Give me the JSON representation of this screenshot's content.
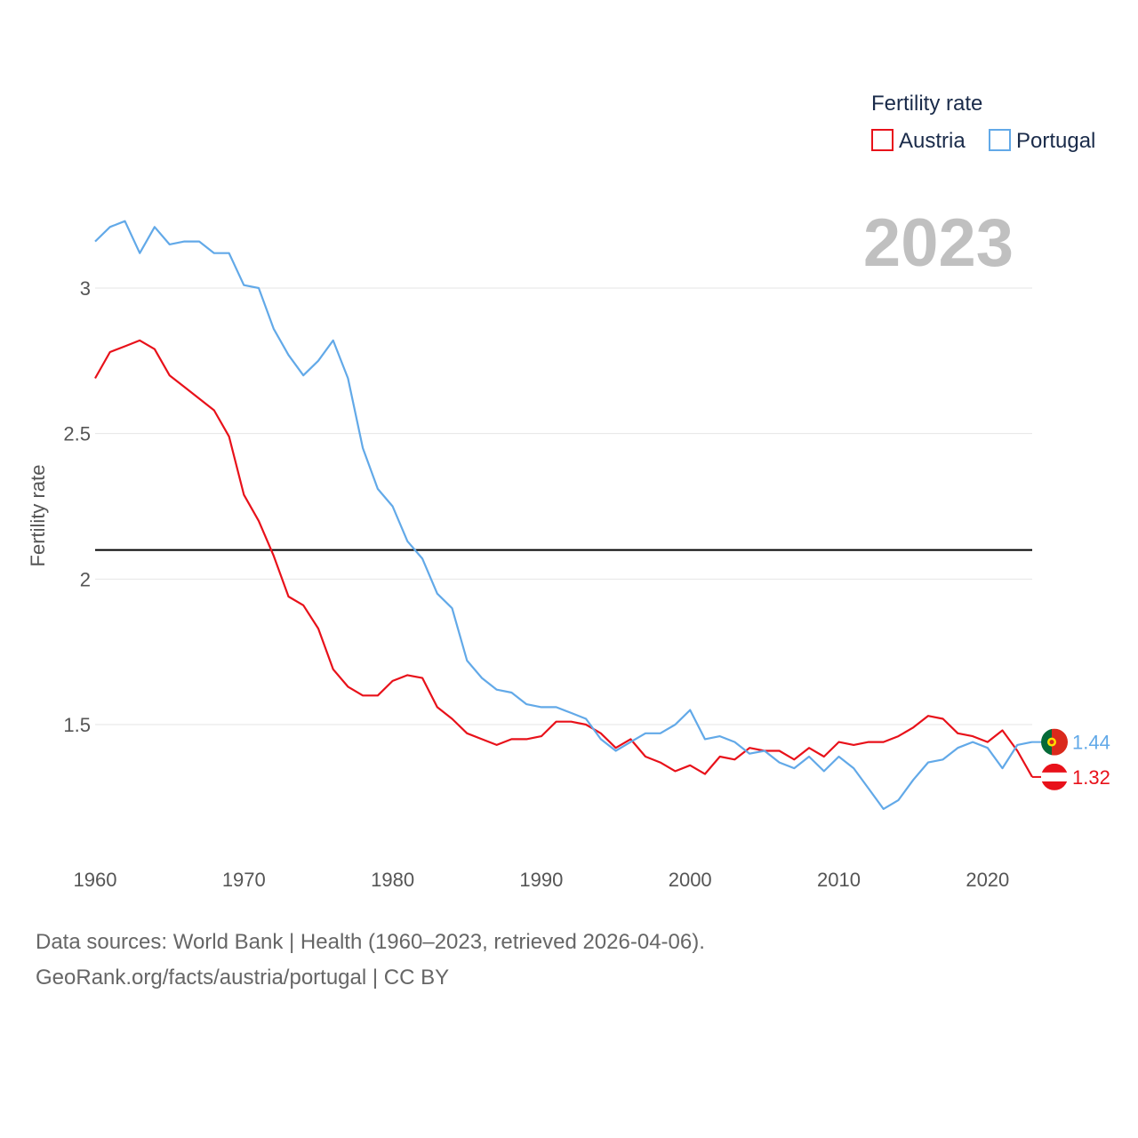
{
  "chart_data": {
    "type": "line",
    "title": "",
    "xlabel": "",
    "ylabel": "Fertility rate",
    "xlim": [
      1960,
      2023
    ],
    "ylim": [
      1.1,
      3.3
    ],
    "yticks": [
      1.5,
      2,
      2.5,
      3
    ],
    "ytick_labels": [
      "1.5",
      "2",
      "2.5",
      "3"
    ],
    "xticks": [
      1960,
      1970,
      1980,
      1990,
      2000,
      2010,
      2020
    ],
    "xtick_labels": [
      "1960",
      "1970",
      "1980",
      "1990",
      "2000",
      "2010",
      "2020"
    ],
    "reference_line": {
      "y": 2.1,
      "color": "#000000"
    },
    "year_label": "2023",
    "legend": {
      "title": "Fertility rate",
      "position": "top-right"
    },
    "x": [
      1960,
      1961,
      1962,
      1963,
      1964,
      1965,
      1966,
      1967,
      1968,
      1969,
      1970,
      1971,
      1972,
      1973,
      1974,
      1975,
      1976,
      1977,
      1978,
      1979,
      1980,
      1981,
      1982,
      1983,
      1984,
      1985,
      1986,
      1987,
      1988,
      1989,
      1990,
      1991,
      1992,
      1993,
      1994,
      1995,
      1996,
      1997,
      1998,
      1999,
      2000,
      2001,
      2002,
      2003,
      2004,
      2005,
      2006,
      2007,
      2008,
      2009,
      2010,
      2011,
      2012,
      2013,
      2014,
      2015,
      2016,
      2017,
      2018,
      2019,
      2020,
      2021,
      2022,
      2023
    ],
    "series": [
      {
        "name": "Austria",
        "color": "#e8111a",
        "end_label": "1.32",
        "flag": "austria",
        "values": [
          2.69,
          2.78,
          2.8,
          2.82,
          2.79,
          2.7,
          2.66,
          2.62,
          2.58,
          2.49,
          2.29,
          2.2,
          2.08,
          1.94,
          1.91,
          1.83,
          1.69,
          1.63,
          1.6,
          1.6,
          1.65,
          1.67,
          1.66,
          1.56,
          1.52,
          1.47,
          1.45,
          1.43,
          1.45,
          1.45,
          1.46,
          1.51,
          1.51,
          1.5,
          1.47,
          1.42,
          1.45,
          1.39,
          1.37,
          1.34,
          1.36,
          1.33,
          1.39,
          1.38,
          1.42,
          1.41,
          1.41,
          1.38,
          1.42,
          1.39,
          1.44,
          1.43,
          1.44,
          1.44,
          1.46,
          1.49,
          1.53,
          1.52,
          1.47,
          1.46,
          1.44,
          1.48,
          1.41,
          1.32
        ]
      },
      {
        "name": "Portugal",
        "color": "#62a9e8",
        "end_label": "1.44",
        "flag": "portugal",
        "values": [
          3.16,
          3.21,
          3.23,
          3.12,
          3.21,
          3.15,
          3.16,
          3.16,
          3.12,
          3.12,
          3.01,
          3.0,
          2.86,
          2.77,
          2.7,
          2.75,
          2.82,
          2.69,
          2.45,
          2.31,
          2.25,
          2.13,
          2.07,
          1.95,
          1.9,
          1.72,
          1.66,
          1.62,
          1.61,
          1.57,
          1.56,
          1.56,
          1.54,
          1.52,
          1.45,
          1.41,
          1.44,
          1.47,
          1.47,
          1.5,
          1.55,
          1.45,
          1.46,
          1.44,
          1.4,
          1.41,
          1.37,
          1.35,
          1.39,
          1.34,
          1.39,
          1.35,
          1.28,
          1.21,
          1.24,
          1.31,
          1.37,
          1.38,
          1.42,
          1.44,
          1.42,
          1.35,
          1.43,
          1.44
        ]
      }
    ]
  },
  "footer": {
    "line1": "Data sources: World Bank | Health (1960–2023, retrieved 2026-04-06).",
    "line2": "GeoRank.org/facts/austria/portugal | CC BY"
  }
}
